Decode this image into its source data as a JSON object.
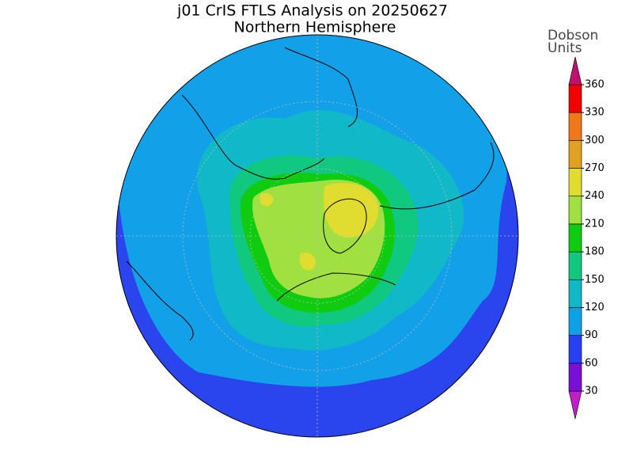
{
  "title": "j01 CrIS FTLS Analysis on 20250627",
  "subtitle": "Northern Hemisphere",
  "colorbar": {
    "label": [
      "Dobson",
      "Units"
    ],
    "ticks": [
      30,
      60,
      90,
      120,
      150,
      180,
      210,
      240,
      270,
      300,
      330,
      360
    ],
    "colors": [
      "#c020c8",
      "#7a10d8",
      "#2840f0",
      "#10a0e8",
      "#10b8c8",
      "#10c880",
      "#10cc10",
      "#a0e040",
      "#e0dc30",
      "#e0a020",
      "#f07818",
      "#f00000",
      "#c0106e"
    ]
  }
}
